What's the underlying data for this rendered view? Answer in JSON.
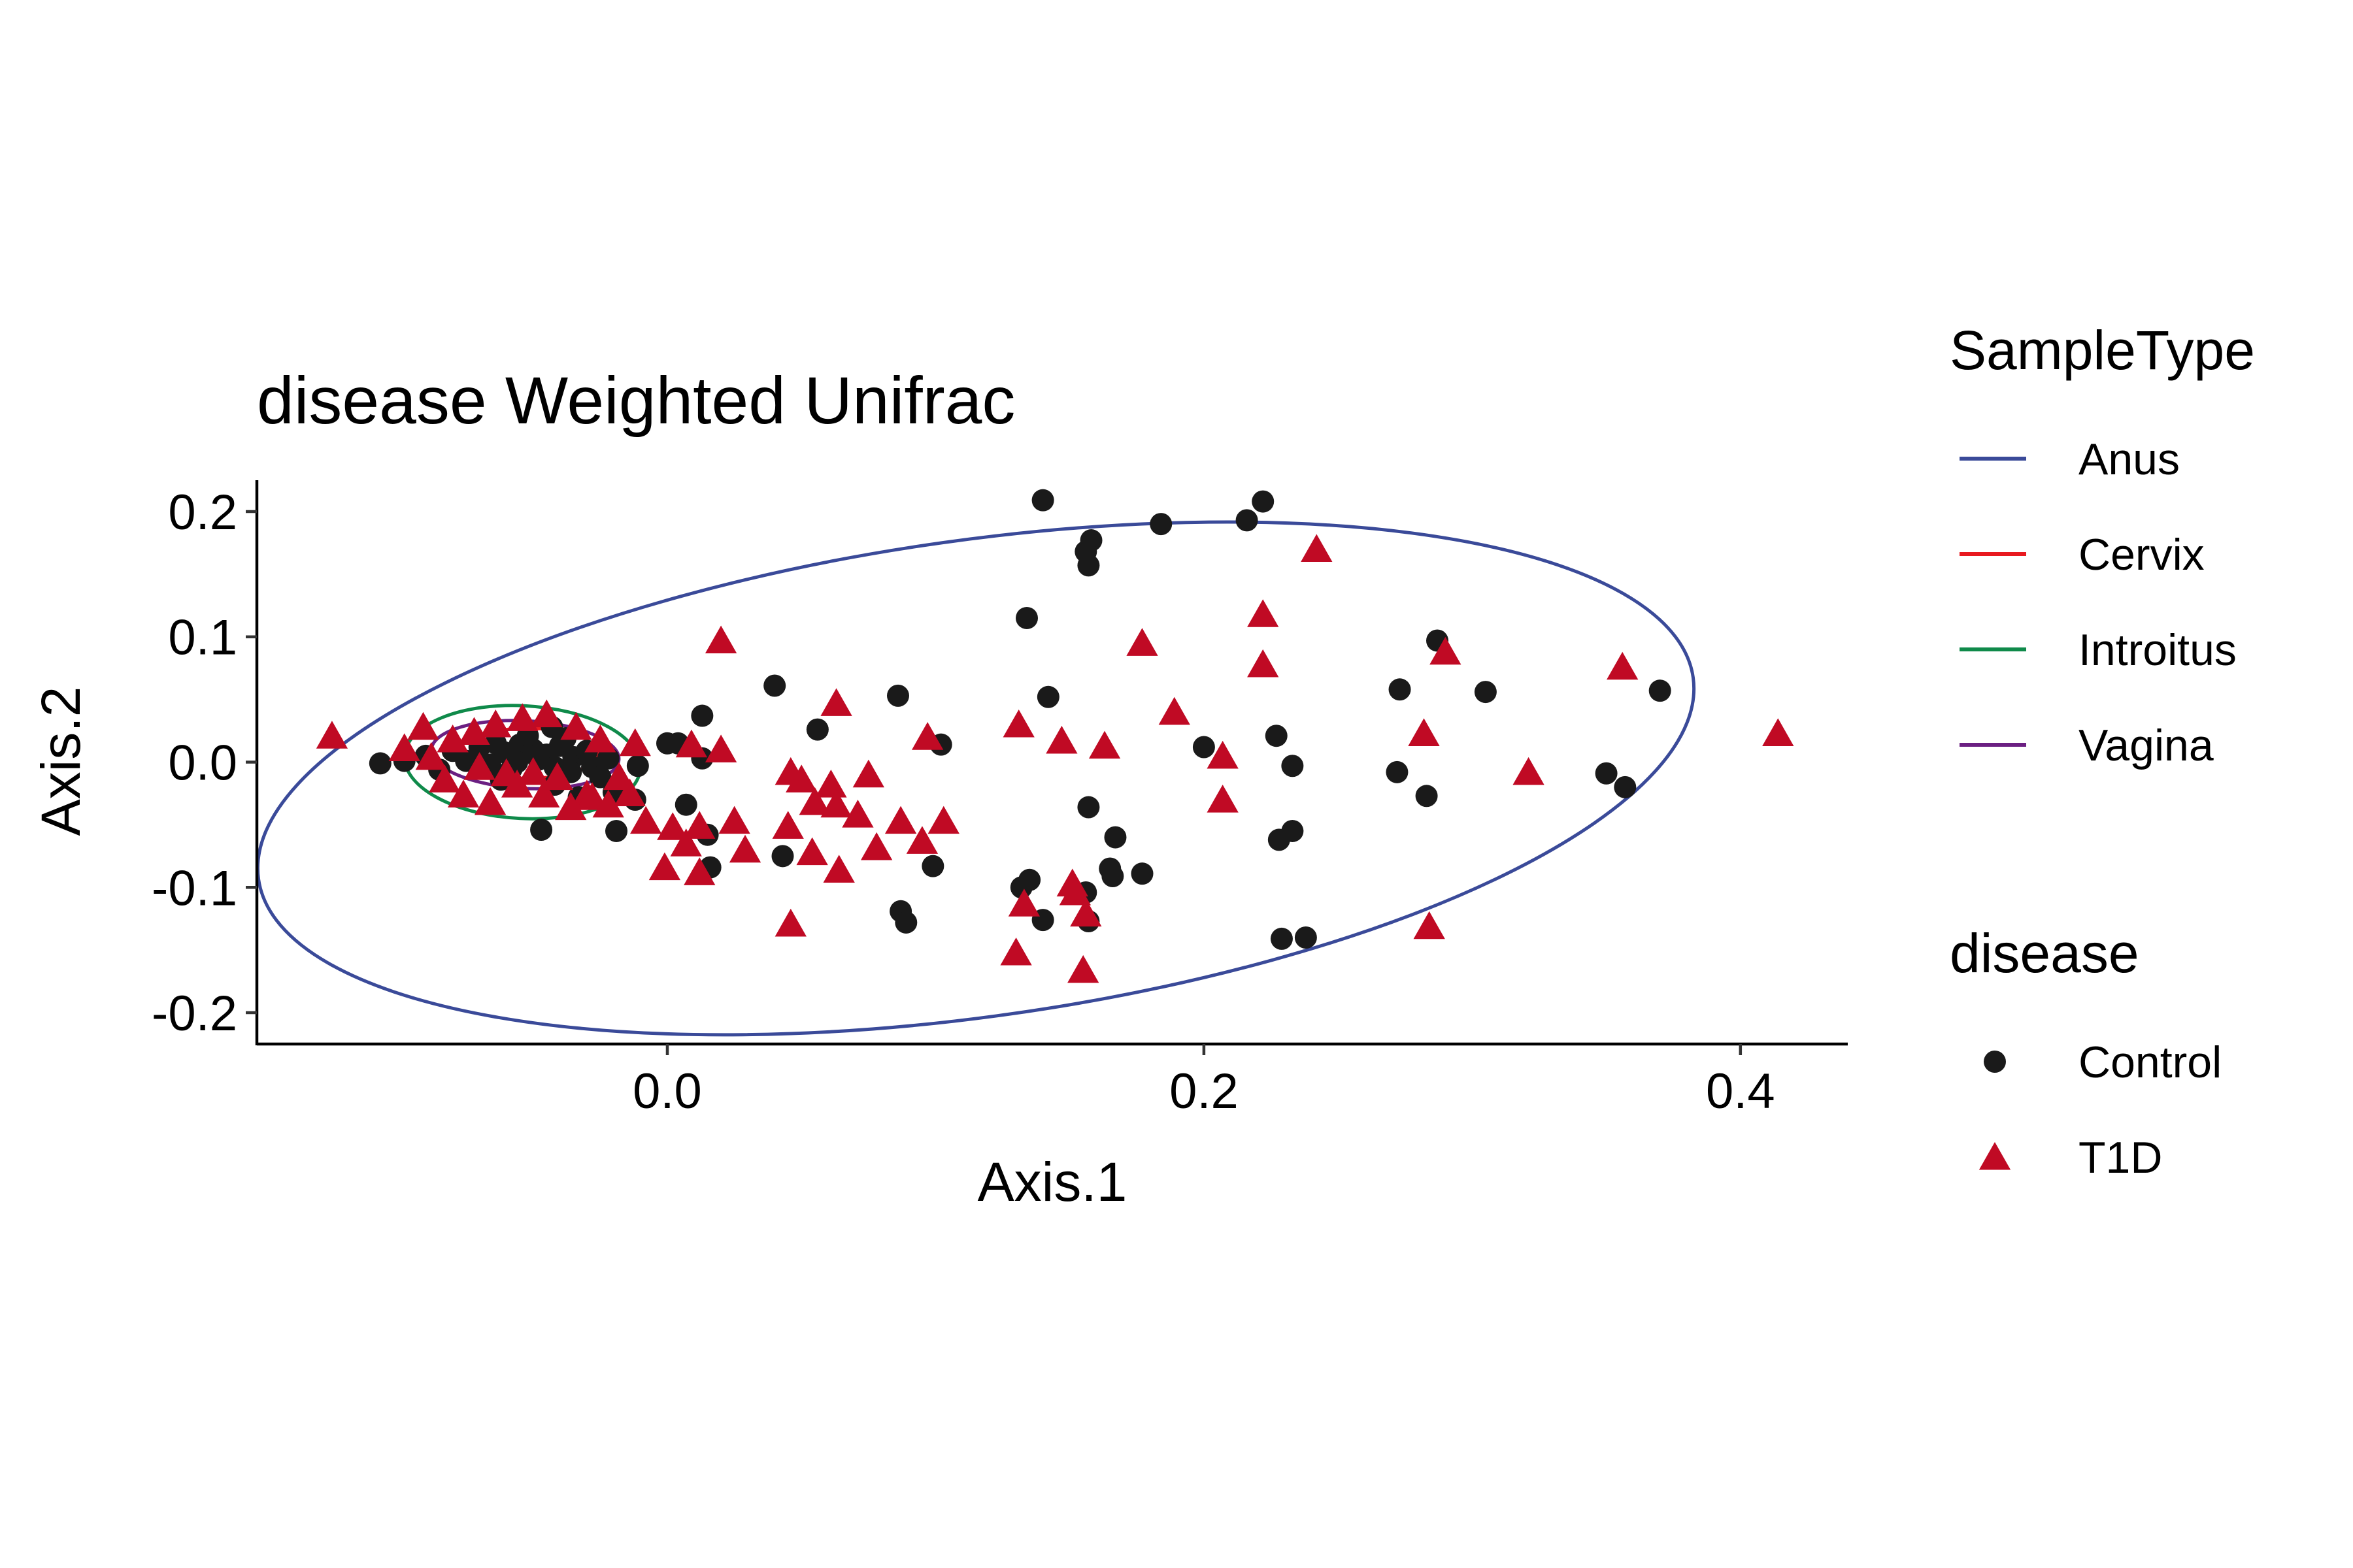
{
  "chart_data": {
    "type": "scatter",
    "title": "disease Weighted Unifrac",
    "xlabel": "Axis.1",
    "ylabel": "Axis.2",
    "xlim": [
      -0.153,
      0.44
    ],
    "ylim": [
      -0.225,
      0.225
    ],
    "x_ticks": [
      {
        "value": 0.0,
        "label": "0.0"
      },
      {
        "value": 0.2,
        "label": "0.2"
      },
      {
        "value": 0.4,
        "label": "0.4"
      }
    ],
    "y_ticks": [
      {
        "value": 0.2,
        "label": "0.2"
      },
      {
        "value": 0.1,
        "label": "0.1"
      },
      {
        "value": 0.0,
        "label": "0.0"
      },
      {
        "value": -0.1,
        "label": "-0.1"
      },
      {
        "value": -0.2,
        "label": "-0.2"
      }
    ],
    "grid": false,
    "legend_position": "right",
    "legends": [
      {
        "title": "SampleType",
        "kind": "line",
        "entries": [
          {
            "label": "Anus",
            "color": "#3A4A99"
          },
          {
            "label": "Cervix",
            "color": "#E8191F"
          },
          {
            "label": "Introitus",
            "color": "#0F8A4A"
          },
          {
            "label": "Vagina",
            "color": "#6B1F82"
          }
        ]
      },
      {
        "title": "disease",
        "kind": "shape",
        "entries": [
          {
            "label": "Control",
            "shape": "circle",
            "color": "#1A1A1A"
          },
          {
            "label": "T1D",
            "shape": "triangle",
            "color": "#C00A24"
          }
        ]
      }
    ],
    "ellipses": [
      {
        "name": "Anus",
        "color": "#3A4A99",
        "cx": 0.115,
        "cy": -0.013,
        "rx": 0.27,
        "ry": 0.19,
        "angle_deg": 8
      },
      {
        "name": "Introitus",
        "color": "#0F8A4A",
        "cx": -0.054,
        "cy": 0.0,
        "rx": 0.044,
        "ry": 0.045,
        "angle_deg": -3
      },
      {
        "name": "Cervix",
        "color": "#E8191F",
        "cx": -0.052,
        "cy": 0.007,
        "rx": 0.026,
        "ry": 0.02,
        "angle_deg": 0
      },
      {
        "name": "Vagina",
        "color": "#6B1F82",
        "cx": -0.053,
        "cy": 0.006,
        "rx": 0.035,
        "ry": 0.027,
        "angle_deg": -3
      }
    ],
    "series": [
      {
        "name": "Control",
        "shape": "circle",
        "color": "#1A1A1A",
        "points": [
          [
            0.14,
            0.209
          ],
          [
            0.222,
            0.208
          ],
          [
            0.216,
            0.193
          ],
          [
            0.184,
            0.19
          ],
          [
            0.158,
            0.177
          ],
          [
            0.156,
            0.168
          ],
          [
            0.157,
            0.157
          ],
          [
            0.134,
            0.115
          ],
          [
            0.287,
            0.097
          ],
          [
            0.04,
            0.061
          ],
          [
            0.086,
            0.053
          ],
          [
            0.142,
            0.052
          ],
          [
            0.273,
            0.058
          ],
          [
            0.305,
            0.056
          ],
          [
            0.37,
            0.057
          ],
          [
            0.013,
            0.037
          ],
          [
            0.056,
            0.026
          ],
          [
            0.227,
            0.021
          ],
          [
            0.2,
            0.012
          ],
          [
            0.102,
            0.014
          ],
          [
            0.0,
            0.015
          ],
          [
            0.004,
            0.015
          ],
          [
            0.013,
            0.003
          ],
          [
            -0.011,
            -0.003
          ],
          [
            0.233,
            -0.003
          ],
          [
            0.272,
            -0.008
          ],
          [
            0.35,
            -0.009
          ],
          [
            0.357,
            -0.02
          ],
          [
            0.283,
            -0.027
          ],
          [
            0.157,
            -0.036
          ],
          [
            0.007,
            -0.034
          ],
          [
            0.233,
            -0.055
          ],
          [
            0.228,
            -0.062
          ],
          [
            0.167,
            -0.06
          ],
          [
            0.015,
            -0.058
          ],
          [
            0.016,
            -0.084
          ],
          [
            0.043,
            -0.075
          ],
          [
            0.099,
            -0.083
          ],
          [
            0.165,
            -0.085
          ],
          [
            0.177,
            -0.089
          ],
          [
            0.166,
            -0.091
          ],
          [
            0.135,
            -0.094
          ],
          [
            0.132,
            -0.1
          ],
          [
            0.156,
            -0.104
          ],
          [
            0.087,
            -0.119
          ],
          [
            0.089,
            -0.128
          ],
          [
            0.14,
            -0.126
          ],
          [
            0.157,
            -0.127
          ],
          [
            0.229,
            -0.141
          ],
          [
            0.238,
            -0.14
          ],
          [
            -0.019,
            -0.055
          ],
          [
            -0.047,
            -0.054
          ],
          [
            -0.107,
            -0.001
          ],
          [
            -0.098,
            0.001
          ],
          [
            -0.09,
            0.005
          ],
          [
            -0.08,
            0.009
          ],
          [
            -0.07,
            0.012
          ],
          [
            -0.061,
            0.008
          ],
          [
            -0.055,
            0.014
          ],
          [
            -0.05,
            0.01
          ],
          [
            -0.045,
            0.006
          ],
          [
            -0.04,
            0.013
          ],
          [
            -0.035,
            0.004
          ],
          [
            -0.03,
            0.009
          ],
          [
            -0.066,
            -0.002
          ],
          [
            -0.058,
            -0.005
          ],
          [
            -0.048,
            0.002
          ],
          [
            -0.042,
            -0.004
          ],
          [
            -0.036,
            -0.008
          ],
          [
            -0.028,
            -0.004
          ],
          [
            -0.022,
            0.003
          ],
          [
            -0.075,
            0.001
          ],
          [
            -0.052,
            0.021
          ],
          [
            -0.043,
            0.028
          ],
          [
            -0.064,
            0.015
          ],
          [
            -0.056,
            0.0
          ],
          [
            -0.038,
            0.019
          ],
          [
            -0.025,
            -0.012
          ],
          [
            -0.033,
            -0.028
          ],
          [
            -0.02,
            -0.024
          ],
          [
            -0.012,
            -0.03
          ],
          [
            -0.085,
            -0.006
          ],
          [
            -0.042,
            -0.018
          ],
          [
            -0.062,
            -0.014
          ]
        ]
      },
      {
        "name": "T1D",
        "shape": "triangle",
        "color": "#C00A24",
        "points": [
          [
            0.242,
            0.17
          ],
          [
            0.222,
            0.118
          ],
          [
            0.177,
            0.095
          ],
          [
            0.29,
            0.088
          ],
          [
            0.02,
            0.097
          ],
          [
            0.222,
            0.078
          ],
          [
            0.356,
            0.076
          ],
          [
            0.063,
            0.047
          ],
          [
            0.189,
            0.04
          ],
          [
            0.282,
            0.023
          ],
          [
            0.414,
            0.023
          ],
          [
            0.131,
            0.03
          ],
          [
            0.097,
            0.02
          ],
          [
            0.147,
            0.017
          ],
          [
            0.163,
            0.013
          ],
          [
            0.02,
            0.01
          ],
          [
            0.207,
            0.005
          ],
          [
            0.321,
            -0.008
          ],
          [
            0.046,
            -0.008
          ],
          [
            0.05,
            -0.014
          ],
          [
            0.061,
            -0.018
          ],
          [
            0.075,
            -0.01
          ],
          [
            0.207,
            -0.03
          ],
          [
            0.055,
            -0.032
          ],
          [
            0.063,
            -0.034
          ],
          [
            0.071,
            -0.042
          ],
          [
            0.087,
            -0.047
          ],
          [
            0.103,
            -0.047
          ],
          [
            0.025,
            -0.047
          ],
          [
            0.045,
            -0.051
          ],
          [
            0.078,
            -0.068
          ],
          [
            0.095,
            -0.063
          ],
          [
            0.029,
            -0.07
          ],
          [
            0.054,
            -0.072
          ],
          [
            0.064,
            -0.086
          ],
          [
            0.002,
            -0.052
          ],
          [
            -0.008,
            -0.047
          ],
          [
            0.012,
            -0.051
          ],
          [
            0.007,
            -0.065
          ],
          [
            -0.001,
            -0.084
          ],
          [
            0.012,
            -0.088
          ],
          [
            0.046,
            -0.129
          ],
          [
            0.133,
            -0.113
          ],
          [
            0.151,
            -0.097
          ],
          [
            0.152,
            -0.104
          ],
          [
            0.156,
            -0.121
          ],
          [
            0.13,
            -0.152
          ],
          [
            0.155,
            -0.166
          ],
          [
            0.284,
            -0.131
          ],
          [
            -0.125,
            0.021
          ],
          [
            -0.091,
            0.028
          ],
          [
            -0.08,
            0.018
          ],
          [
            -0.072,
            0.024
          ],
          [
            -0.064,
            0.03
          ],
          [
            -0.054,
            0.035
          ],
          [
            -0.045,
            0.038
          ],
          [
            -0.034,
            0.028
          ],
          [
            -0.025,
            0.018
          ],
          [
            -0.012,
            0.015
          ],
          [
            0.009,
            0.014
          ],
          [
            -0.098,
            0.011
          ],
          [
            -0.088,
            0.004
          ],
          [
            -0.07,
            -0.004
          ],
          [
            -0.06,
            -0.009
          ],
          [
            -0.05,
            -0.008
          ],
          [
            -0.041,
            -0.012
          ],
          [
            -0.03,
            -0.026
          ],
          [
            -0.022,
            -0.034
          ],
          [
            -0.014,
            -0.025
          ],
          [
            -0.076,
            -0.026
          ],
          [
            -0.066,
            -0.032
          ],
          [
            -0.056,
            -0.018
          ],
          [
            -0.046,
            -0.026
          ],
          [
            -0.036,
            -0.036
          ],
          [
            -0.028,
            -0.028
          ],
          [
            -0.083,
            -0.014
          ],
          [
            -0.018,
            -0.012
          ]
        ]
      }
    ]
  }
}
